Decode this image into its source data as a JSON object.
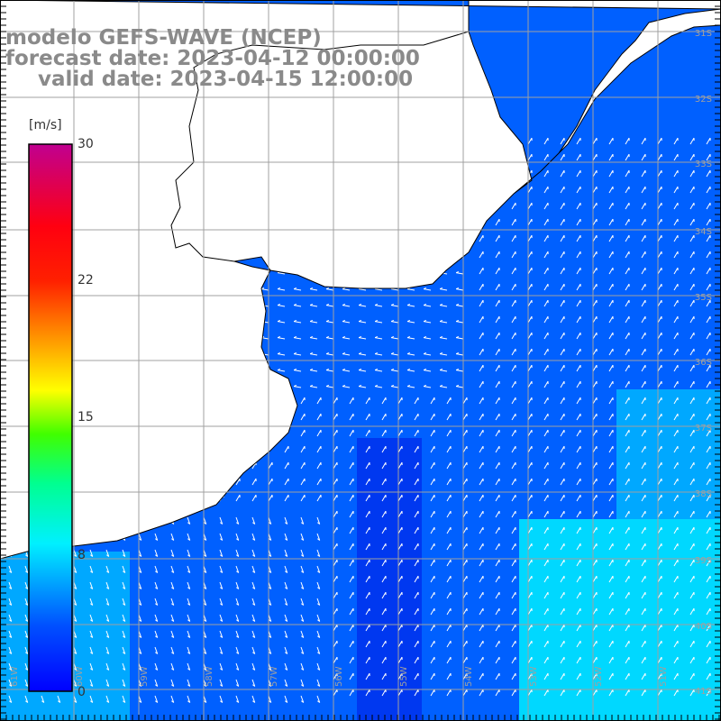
{
  "title": {
    "model": "modelo GEFS-WAVE (NCEP)",
    "forecast": "forecast date: 2023-04-12 00:00:00",
    "valid": "valid date: 2023-04-15 12:00:00"
  },
  "colorbar": {
    "unit": "[m/s]",
    "ticks": [
      "30",
      "22",
      "15",
      "8",
      "0"
    ],
    "colors": [
      "#0000ff",
      "#0060ff",
      "#00c0ff",
      "#00ffe0",
      "#00ff80",
      "#60ff00",
      "#ffff00",
      "#ffa000",
      "#ff3000",
      "#ff0000",
      "#e00060",
      "#c00080"
    ]
  },
  "map": {
    "ocean_colors": {
      "weak": "#0038f0",
      "mid": "#0060ff",
      "strong": "#00a8ff",
      "stronger": "#00d8ff"
    },
    "land_color": "#ffffff",
    "grid_color": "#a0a0a0",
    "lat_labels": [
      "31S",
      "32S",
      "33S",
      "34S",
      "35S",
      "36S",
      "37S",
      "38S",
      "39S",
      "40S",
      "41S"
    ],
    "lon_labels": [
      "61W",
      "60W",
      "59W",
      "58W",
      "57W",
      "56W",
      "55W",
      "54W",
      "53W",
      "52W",
      "51W"
    ]
  }
}
